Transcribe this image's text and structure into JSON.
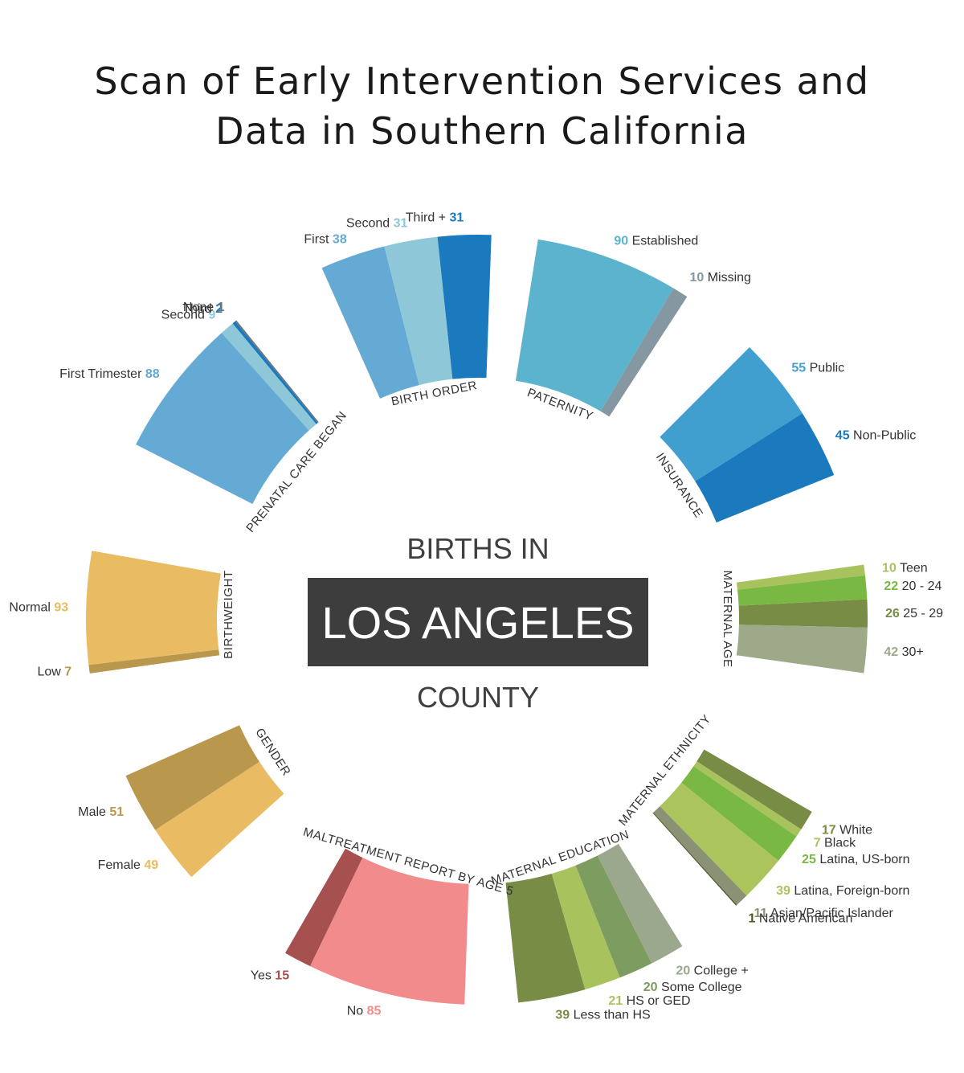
{
  "title_lines": [
    "Scan of Early Intervention Services and",
    "Data in Southern California"
  ],
  "center": {
    "top": "BIRTHS IN",
    "banner": "LOS ANGELES",
    "bottom": "COUNTY",
    "banner_color": "#3d3d3d"
  },
  "chart_data": {
    "type": "radial-stacked-bar",
    "groups": [
      {
        "category": "BIRTH ORDER",
        "items": [
          {
            "label": "First",
            "value": 38,
            "color": "#64aad5"
          },
          {
            "label": "Second",
            "value": 31,
            "color": "#8ec7d7"
          },
          {
            "label": "Third +",
            "value": 31,
            "color": "#1a7abd"
          }
        ]
      },
      {
        "category": "PATERNITY",
        "items": [
          {
            "label": "Established",
            "value": 90,
            "color": "#5cb3cd"
          },
          {
            "label": "Missing",
            "value": 10,
            "color": "#8597a0"
          }
        ]
      },
      {
        "category": "INSURANCE",
        "items": [
          {
            "label": "Public",
            "value": 55,
            "color": "#419fd0"
          },
          {
            "label": "Non-Public",
            "value": 45,
            "color": "#1a7abd"
          }
        ]
      },
      {
        "category": "MATERNAL AGE",
        "items": [
          {
            "label": "Teen",
            "value": 10,
            "color": "#a8c35e"
          },
          {
            "label": "20 - 24",
            "value": 22,
            "color": "#79b842"
          },
          {
            "label": "25 - 29",
            "value": 26,
            "color": "#788c45"
          },
          {
            "label": "30+",
            "value": 42,
            "color": "#9ea98a"
          }
        ]
      },
      {
        "category": "MATERNAL ETHNICITY",
        "items": [
          {
            "label": "White",
            "value": 17,
            "color": "#798c45"
          },
          {
            "label": "Black",
            "value": 7,
            "color": "#a8c35e"
          },
          {
            "label": "Latina, US-born",
            "value": 25,
            "color": "#79b842"
          },
          {
            "label": "Latina, Foreign-born",
            "value": 39,
            "color": "#abc45c"
          },
          {
            "label": "Asian/Pacific Islander",
            "value": 11,
            "color": "#8a9174"
          },
          {
            "label": "Native American",
            "value": 1,
            "color": "#4a5a26"
          }
        ]
      },
      {
        "category": "MATERNAL EDUCATION",
        "items": [
          {
            "label": "Less than HS",
            "value": 39,
            "color": "#798c45"
          },
          {
            "label": "HS or GED",
            "value": 21,
            "color": "#a8c35e"
          },
          {
            "label": "Some College",
            "value": 20,
            "color": "#7d9c5f"
          },
          {
            "label": "College +",
            "value": 20,
            "color": "#9ba88e"
          }
        ]
      },
      {
        "category": "MALTREATMENT REPORT BY AGE 5",
        "items": [
          {
            "label": "Yes",
            "value": 15,
            "color": "#a65050"
          },
          {
            "label": "No",
            "value": 85,
            "color": "#f28b8c"
          }
        ]
      },
      {
        "category": "GENDER",
        "items": [
          {
            "label": "Male",
            "value": 51,
            "color": "#b9974d"
          },
          {
            "label": "Female",
            "value": 49,
            "color": "#e9bc63"
          }
        ]
      },
      {
        "category": "BIRTHWEIGHT",
        "items": [
          {
            "label": "Low",
            "value": 7,
            "color": "#b9974d"
          },
          {
            "label": "Normal",
            "value": 93,
            "color": "#e9bc63"
          }
        ]
      },
      {
        "category": "PRENATAL CARE BEGAN",
        "items": [
          {
            "label": "First Trimester",
            "value": 88,
            "color": "#64aad5"
          },
          {
            "label": "Second",
            "value": 9,
            "color": "#8ec7d7"
          },
          {
            "label": "Third",
            "value": 2,
            "color": "#1a7abd"
          },
          {
            "label": "None",
            "value": 1,
            "color": "#6b7378"
          }
        ]
      }
    ]
  }
}
